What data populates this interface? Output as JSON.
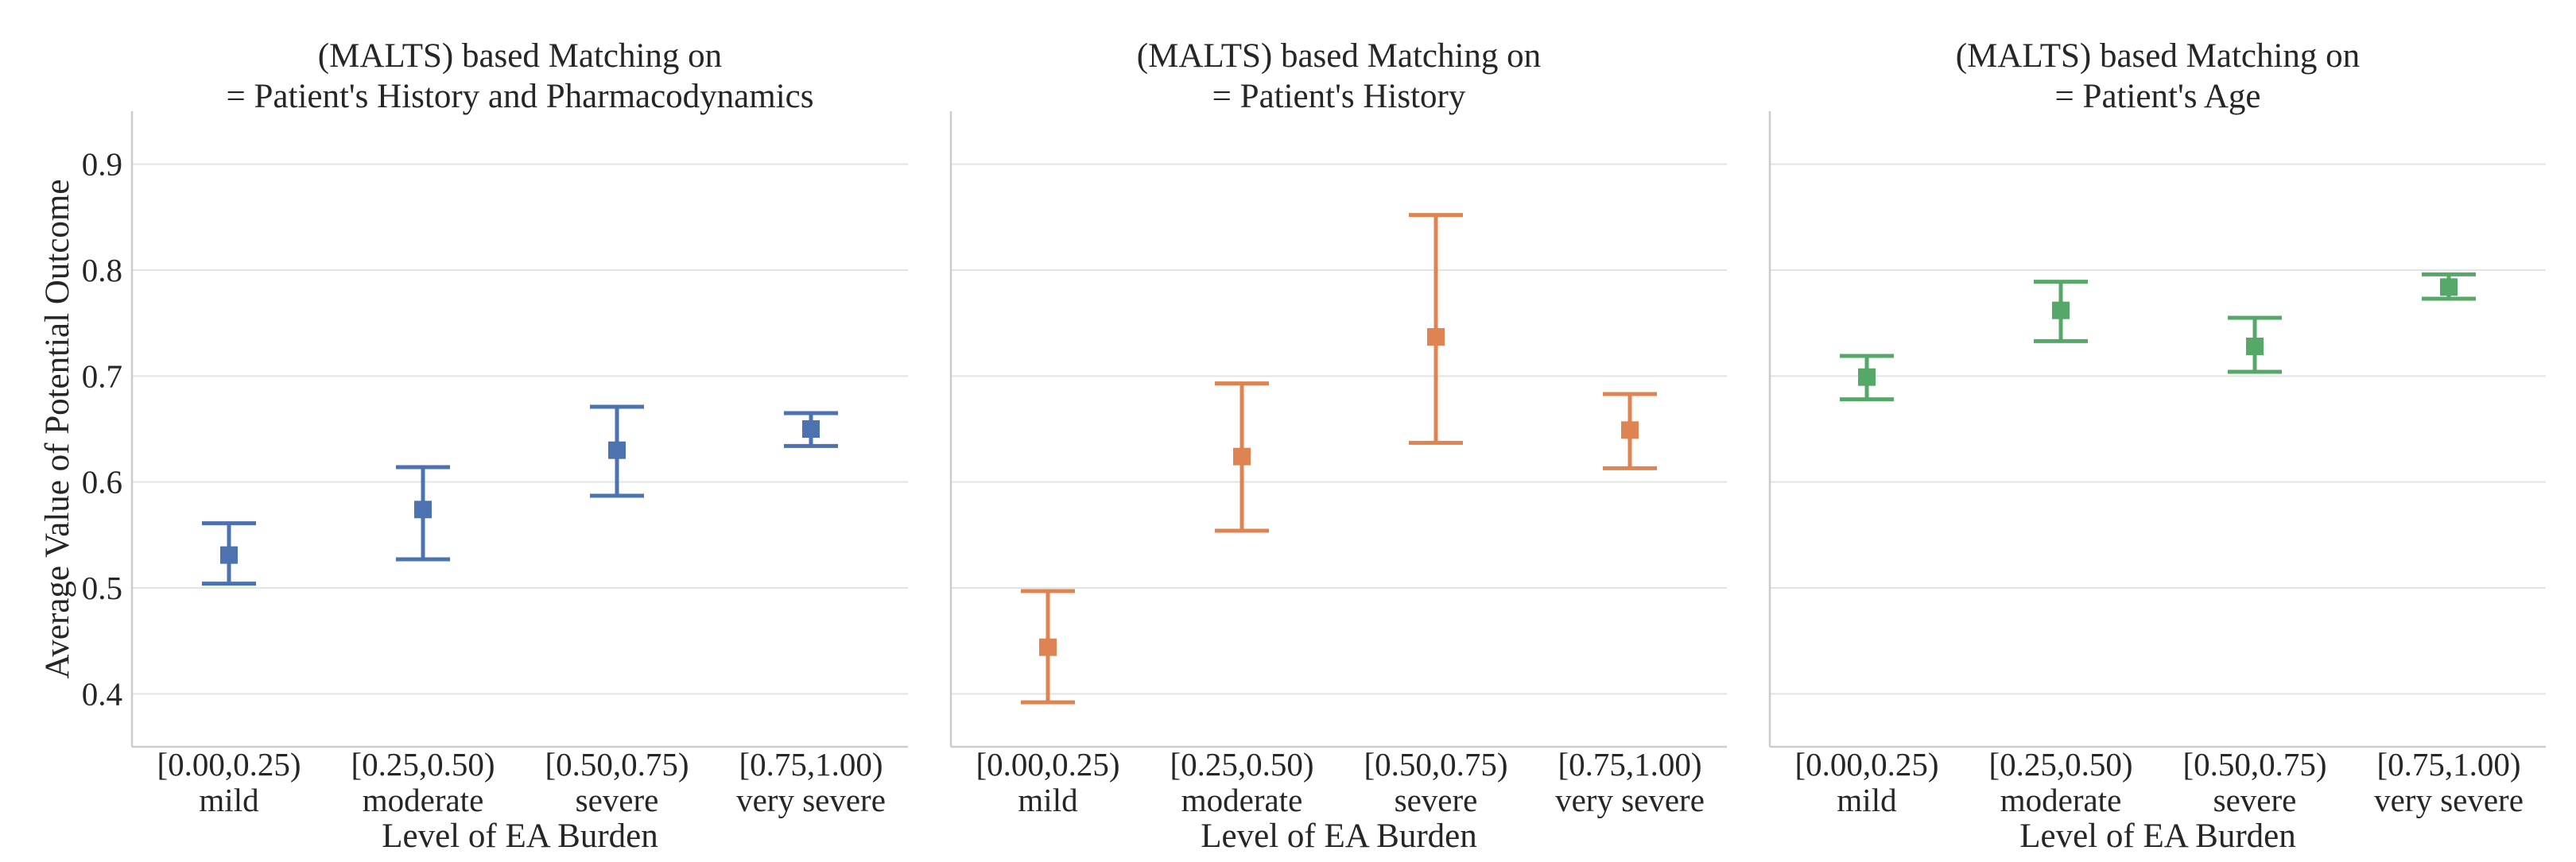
{
  "chart_data": {
    "type": "point-errorbar",
    "shared_ylabel": "Average Value of Potential Outcome",
    "ylim": [
      0.35,
      0.95
    ],
    "yticks": [
      0.4,
      0.5,
      0.6,
      0.7,
      0.8,
      0.9
    ],
    "grid": "horizontal",
    "panels": [
      {
        "title_lines": [
          "(MALTS) based Matching on",
          "= Patient's History and Pharmacodynamics"
        ],
        "xlabel": "Level of EA Burden",
        "color": "#4c72b0",
        "categories": [
          {
            "range": "[0.00,0.25)",
            "label": "mild"
          },
          {
            "range": "[0.25,0.50)",
            "label": "moderate"
          },
          {
            "range": "[0.50,0.75)",
            "label": "severe"
          },
          {
            "range": "[0.75,1.00)",
            "label": "very severe"
          }
        ],
        "values": [
          0.531,
          0.574,
          0.63,
          0.65
        ],
        "lower": [
          0.504,
          0.527,
          0.587,
          0.634
        ],
        "upper": [
          0.561,
          0.614,
          0.671,
          0.665
        ]
      },
      {
        "title_lines": [
          "(MALTS) based Matching on",
          "= Patient's History"
        ],
        "xlabel": "Level of EA Burden",
        "color": "#dd8452",
        "categories": [
          {
            "range": "[0.00,0.25)",
            "label": "mild"
          },
          {
            "range": "[0.25,0.50)",
            "label": "moderate"
          },
          {
            "range": "[0.50,0.75)",
            "label": "severe"
          },
          {
            "range": "[0.75,1.00)",
            "label": "very severe"
          }
        ],
        "values": [
          0.444,
          0.624,
          0.737,
          0.649
        ],
        "lower": [
          0.392,
          0.554,
          0.637,
          0.613
        ],
        "upper": [
          0.497,
          0.693,
          0.852,
          0.683
        ]
      },
      {
        "title_lines": [
          "(MALTS) based Matching on",
          "= Patient's Age"
        ],
        "xlabel": "Level of EA Burden",
        "color": "#55a868",
        "categories": [
          {
            "range": "[0.00,0.25)",
            "label": "mild"
          },
          {
            "range": "[0.25,0.50)",
            "label": "moderate"
          },
          {
            "range": "[0.50,0.75)",
            "label": "severe"
          },
          {
            "range": "[0.75,1.00)",
            "label": "very severe"
          }
        ],
        "values": [
          0.699,
          0.762,
          0.728,
          0.784
        ],
        "lower": [
          0.678,
          0.733,
          0.704,
          0.773
        ],
        "upper": [
          0.719,
          0.789,
          0.755,
          0.796
        ]
      }
    ]
  }
}
